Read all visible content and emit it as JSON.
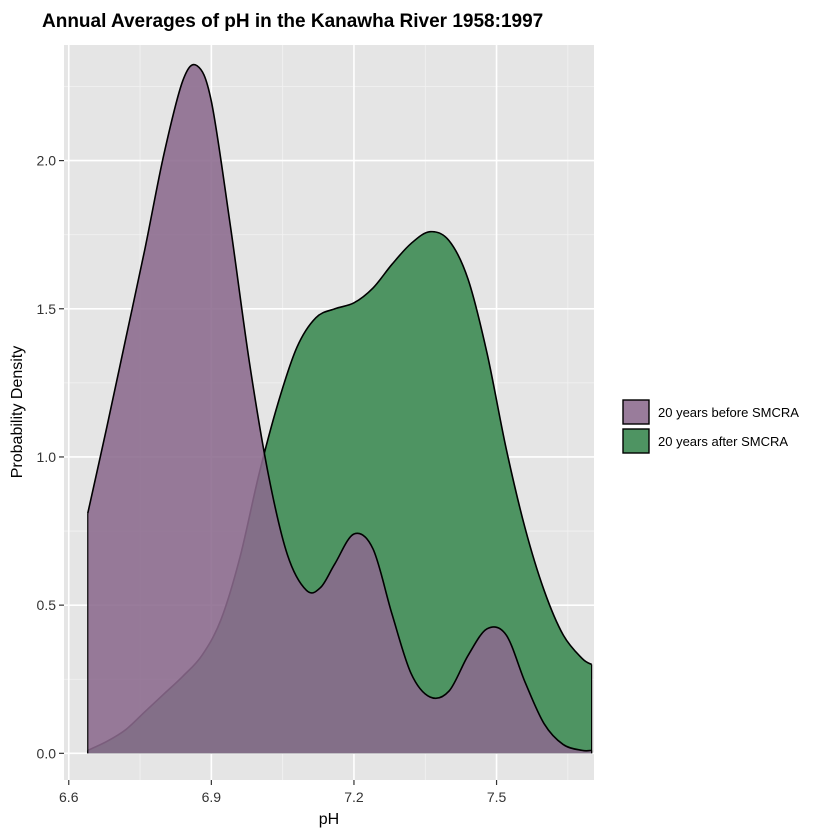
{
  "chart_data": {
    "type": "area",
    "title": "Annual Averages of pH in the Kanawha River 1958:1997",
    "xlabel": "pH",
    "ylabel": "Probability Density",
    "xlim": [
      6.59,
      7.705
    ],
    "ylim": [
      -0.09,
      2.39
    ],
    "xticks": [
      6.6,
      6.9,
      7.2,
      7.5
    ],
    "xtick_labels": [
      "6.6",
      "6.9",
      "7.2",
      "7.5"
    ],
    "yticks": [
      0.0,
      0.5,
      1.0,
      1.5,
      2.0
    ],
    "ytick_labels": [
      "0.0",
      "0.5",
      "1.0",
      "1.5",
      "2.0"
    ],
    "grid": true,
    "legend_position": "right",
    "series": [
      {
        "name": "20 years after SMCRA",
        "color": "#4e9462",
        "x": [
          6.64,
          6.68,
          6.72,
          6.76,
          6.8,
          6.84,
          6.88,
          6.92,
          6.96,
          7.0,
          7.04,
          7.08,
          7.12,
          7.16,
          7.2,
          7.24,
          7.28,
          7.32,
          7.36,
          7.4,
          7.44,
          7.48,
          7.52,
          7.56,
          7.6,
          7.64,
          7.68,
          7.7
        ],
        "y": [
          0.01,
          0.04,
          0.08,
          0.14,
          0.2,
          0.26,
          0.33,
          0.45,
          0.66,
          0.94,
          1.18,
          1.37,
          1.47,
          1.5,
          1.52,
          1.57,
          1.65,
          1.72,
          1.76,
          1.73,
          1.6,
          1.35,
          1.03,
          0.76,
          0.55,
          0.4,
          0.32,
          0.3
        ]
      },
      {
        "name": "20 years before SMCRA",
        "color": "#8b6a8d",
        "x": [
          6.64,
          6.68,
          6.72,
          6.76,
          6.8,
          6.84,
          6.87,
          6.9,
          6.94,
          6.98,
          7.02,
          7.06,
          7.1,
          7.13,
          7.16,
          7.2,
          7.24,
          7.28,
          7.32,
          7.36,
          7.4,
          7.44,
          7.48,
          7.52,
          7.56,
          7.6,
          7.64,
          7.68,
          7.7
        ],
        "y": [
          0.81,
          1.1,
          1.4,
          1.7,
          2.02,
          2.27,
          2.32,
          2.2,
          1.78,
          1.32,
          0.94,
          0.67,
          0.55,
          0.56,
          0.64,
          0.74,
          0.69,
          0.47,
          0.27,
          0.19,
          0.21,
          0.33,
          0.42,
          0.4,
          0.24,
          0.1,
          0.03,
          0.01,
          0.01
        ]
      }
    ],
    "legend_order": [
      "20 years before SMCRA",
      "20 years after SMCRA"
    ]
  }
}
